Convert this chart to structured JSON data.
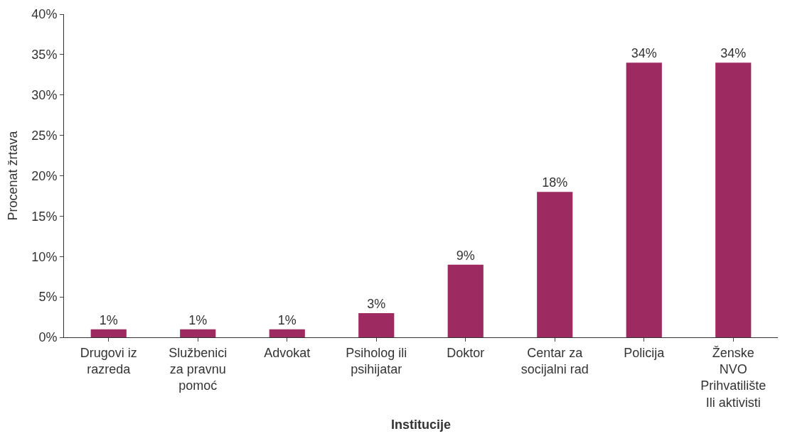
{
  "chart_data": {
    "type": "bar",
    "xlabel": "Institucije",
    "ylabel": "Procenat žrtava",
    "categories": [
      "Drugovi iz\nrazreda",
      "Službenici\nza pravnu\npomoć",
      "Advokat",
      "Psiholog ili\npsihijatar",
      "Doktor",
      "Centar za\nsocijalni rad",
      "Policija",
      "Ženske\nNVO\nPrihvatilište\nIli aktivisti"
    ],
    "values": [
      1,
      1,
      1,
      3,
      9,
      18,
      34,
      34
    ],
    "color": "#9e2a62",
    "data_labels": true,
    "value_labels": [
      "1%",
      "1%",
      "1%",
      "3%",
      "9%",
      "18%",
      "34%",
      "34%"
    ],
    "ylim": [
      0,
      40
    ],
    "yticks": [
      {
        "value": 0,
        "label": "0%"
      },
      {
        "value": 5,
        "label": "5%"
      },
      {
        "value": 10,
        "label": "10%"
      },
      {
        "value": 15,
        "label": "15%"
      },
      {
        "value": 20,
        "label": "20%"
      },
      {
        "value": 25,
        "label": "25%"
      },
      {
        "value": 30,
        "label": "30%"
      },
      {
        "value": 35,
        "label": "35%"
      },
      {
        "value": 40,
        "label": "40%"
      }
    ],
    "legend": false
  }
}
